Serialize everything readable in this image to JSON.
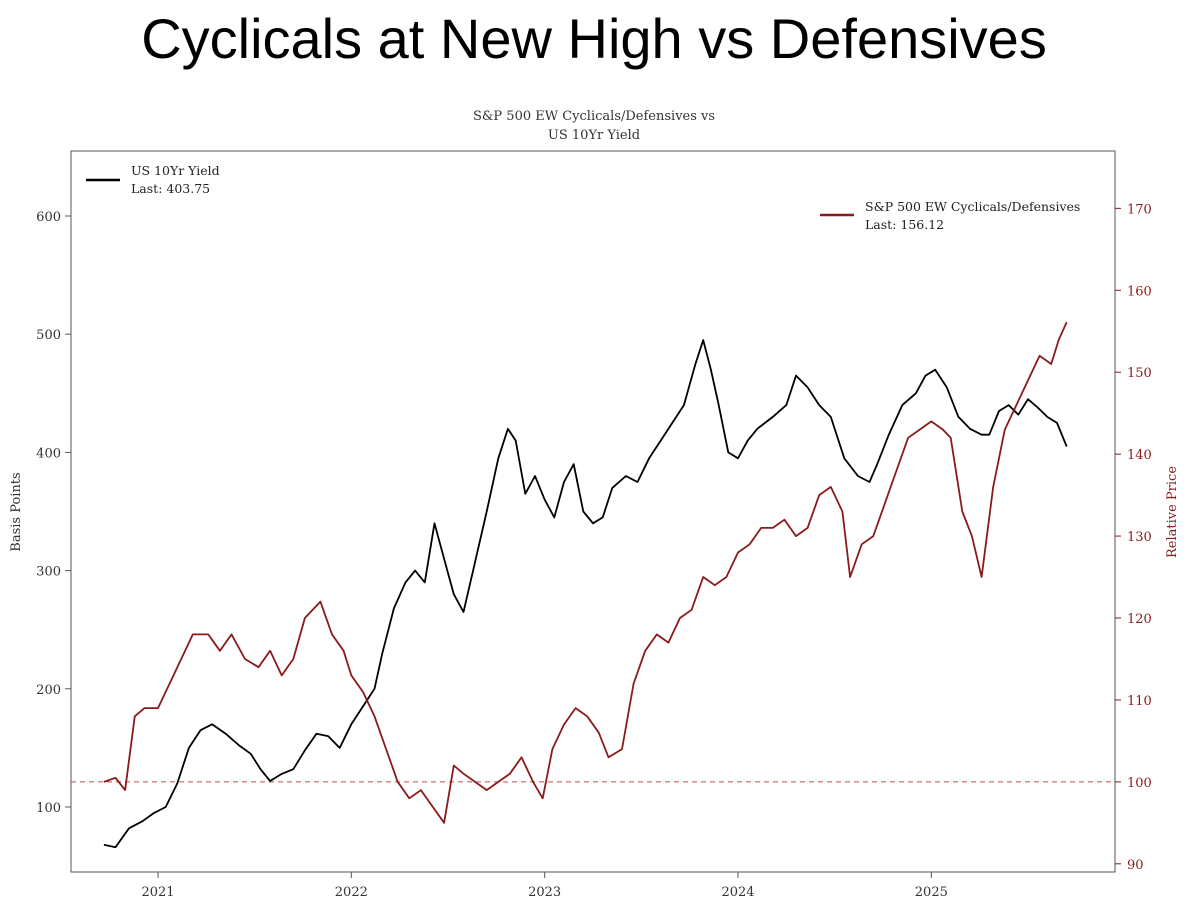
{
  "slide_title": "Cyclicals at New High vs Defensives",
  "chart_data": {
    "type": "line",
    "title": "S&P 500 EW Cyclicals/Defensives vs",
    "subtitle": "US 10Yr Yield",
    "xlabel": "",
    "ylabel": "Basis Points",
    "ylabel_right": "Relative Price",
    "x_ticks": [
      "2021",
      "2022",
      "2023",
      "2024",
      "2025"
    ],
    "x_range": [
      2020.55,
      2025.95
    ],
    "ylim": [
      45,
      655
    ],
    "ylim_right": [
      89,
      177
    ],
    "y_ticks": [
      100,
      200,
      300,
      400,
      500,
      600
    ],
    "y_ticks_right": [
      90,
      100,
      110,
      120,
      130,
      140,
      150,
      160,
      170
    ],
    "reference_line": {
      "axis": "right",
      "value": 100,
      "style": "dashed"
    },
    "series": [
      {
        "name": "US 10Yr Yield",
        "last_label": "Last: 403.75",
        "axis": "left",
        "color": "#000000",
        "points": [
          [
            2020.72,
            68
          ],
          [
            2020.78,
            66
          ],
          [
            2020.85,
            82
          ],
          [
            2020.92,
            88
          ],
          [
            2020.98,
            95
          ],
          [
            2021.04,
            100
          ],
          [
            2021.1,
            120
          ],
          [
            2021.16,
            150
          ],
          [
            2021.22,
            165
          ],
          [
            2021.28,
            170
          ],
          [
            2021.35,
            162
          ],
          [
            2021.42,
            152
          ],
          [
            2021.48,
            145
          ],
          [
            2021.53,
            132
          ],
          [
            2021.58,
            122
          ],
          [
            2021.64,
            128
          ],
          [
            2021.7,
            132
          ],
          [
            2021.76,
            148
          ],
          [
            2021.82,
            162
          ],
          [
            2021.88,
            160
          ],
          [
            2021.94,
            150
          ],
          [
            2022.0,
            170
          ],
          [
            2022.06,
            185
          ],
          [
            2022.12,
            200
          ],
          [
            2022.16,
            230
          ],
          [
            2022.22,
            268
          ],
          [
            2022.28,
            290
          ],
          [
            2022.33,
            300
          ],
          [
            2022.38,
            290
          ],
          [
            2022.43,
            340
          ],
          [
            2022.48,
            310
          ],
          [
            2022.53,
            280
          ],
          [
            2022.58,
            265
          ],
          [
            2022.63,
            300
          ],
          [
            2022.7,
            350
          ],
          [
            2022.76,
            395
          ],
          [
            2022.81,
            420
          ],
          [
            2022.85,
            410
          ],
          [
            2022.9,
            365
          ],
          [
            2022.95,
            380
          ],
          [
            2023.0,
            360
          ],
          [
            2023.05,
            345
          ],
          [
            2023.1,
            375
          ],
          [
            2023.15,
            390
          ],
          [
            2023.2,
            350
          ],
          [
            2023.25,
            340
          ],
          [
            2023.3,
            345
          ],
          [
            2023.35,
            370
          ],
          [
            2023.42,
            380
          ],
          [
            2023.48,
            375
          ],
          [
            2023.54,
            395
          ],
          [
            2023.6,
            410
          ],
          [
            2023.66,
            425
          ],
          [
            2023.72,
            440
          ],
          [
            2023.78,
            475
          ],
          [
            2023.82,
            495
          ],
          [
            2023.86,
            470
          ],
          [
            2023.9,
            440
          ],
          [
            2023.95,
            400
          ],
          [
            2024.0,
            395
          ],
          [
            2024.05,
            410
          ],
          [
            2024.1,
            420
          ],
          [
            2024.18,
            430
          ],
          [
            2024.25,
            440
          ],
          [
            2024.3,
            465
          ],
          [
            2024.36,
            455
          ],
          [
            2024.42,
            440
          ],
          [
            2024.48,
            430
          ],
          [
            2024.55,
            395
          ],
          [
            2024.62,
            380
          ],
          [
            2024.68,
            375
          ],
          [
            2024.72,
            390
          ],
          [
            2024.78,
            415
          ],
          [
            2024.85,
            440
          ],
          [
            2024.92,
            450
          ],
          [
            2024.97,
            465
          ],
          [
            2025.02,
            470
          ],
          [
            2025.08,
            455
          ],
          [
            2025.14,
            430
          ],
          [
            2025.2,
            420
          ],
          [
            2025.26,
            415
          ],
          [
            2025.3,
            415
          ],
          [
            2025.35,
            435
          ],
          [
            2025.4,
            440
          ],
          [
            2025.45,
            432
          ],
          [
            2025.5,
            445
          ],
          [
            2025.55,
            438
          ],
          [
            2025.6,
            430
          ],
          [
            2025.65,
            425
          ],
          [
            2025.7,
            405
          ]
        ]
      },
      {
        "name": "S&P 500 EW Cyclicals/Defensives",
        "last_label": "Last: 156.12",
        "axis": "right",
        "color": "#8b1a1a",
        "points": [
          [
            2020.72,
            100
          ],
          [
            2020.78,
            100.5
          ],
          [
            2020.83,
            99
          ],
          [
            2020.88,
            108
          ],
          [
            2020.93,
            109
          ],
          [
            2021.0,
            109
          ],
          [
            2021.06,
            112
          ],
          [
            2021.12,
            115
          ],
          [
            2021.18,
            118
          ],
          [
            2021.26,
            118
          ],
          [
            2021.32,
            116
          ],
          [
            2021.38,
            118
          ],
          [
            2021.45,
            115
          ],
          [
            2021.52,
            114
          ],
          [
            2021.58,
            116
          ],
          [
            2021.64,
            113
          ],
          [
            2021.7,
            115
          ],
          [
            2021.76,
            120
          ],
          [
            2021.84,
            122
          ],
          [
            2021.9,
            118
          ],
          [
            2021.96,
            116
          ],
          [
            2022.0,
            113
          ],
          [
            2022.06,
            111
          ],
          [
            2022.12,
            108
          ],
          [
            2022.18,
            104
          ],
          [
            2022.24,
            100
          ],
          [
            2022.3,
            98
          ],
          [
            2022.36,
            99
          ],
          [
            2022.42,
            97
          ],
          [
            2022.48,
            95
          ],
          [
            2022.53,
            102
          ],
          [
            2022.58,
            101
          ],
          [
            2022.64,
            100
          ],
          [
            2022.7,
            99
          ],
          [
            2022.76,
            100
          ],
          [
            2022.82,
            101
          ],
          [
            2022.88,
            103
          ],
          [
            2022.94,
            100
          ],
          [
            2022.99,
            98
          ],
          [
            2023.04,
            104
          ],
          [
            2023.1,
            107
          ],
          [
            2023.16,
            109
          ],
          [
            2023.22,
            108
          ],
          [
            2023.28,
            106
          ],
          [
            2023.33,
            103
          ],
          [
            2023.4,
            104
          ],
          [
            2023.46,
            112
          ],
          [
            2023.52,
            116
          ],
          [
            2023.58,
            118
          ],
          [
            2023.64,
            117
          ],
          [
            2023.7,
            120
          ],
          [
            2023.76,
            121
          ],
          [
            2023.82,
            125
          ],
          [
            2023.88,
            124
          ],
          [
            2023.94,
            125
          ],
          [
            2024.0,
            128
          ],
          [
            2024.06,
            129
          ],
          [
            2024.12,
            131
          ],
          [
            2024.18,
            131
          ],
          [
            2024.24,
            132
          ],
          [
            2024.3,
            130
          ],
          [
            2024.36,
            131
          ],
          [
            2024.42,
            135
          ],
          [
            2024.48,
            136
          ],
          [
            2024.54,
            133
          ],
          [
            2024.58,
            125
          ],
          [
            2024.64,
            129
          ],
          [
            2024.7,
            130
          ],
          [
            2024.76,
            134
          ],
          [
            2024.82,
            138
          ],
          [
            2024.88,
            142
          ],
          [
            2024.94,
            143
          ],
          [
            2025.0,
            144
          ],
          [
            2025.06,
            143
          ],
          [
            2025.1,
            142
          ],
          [
            2025.16,
            133
          ],
          [
            2025.21,
            130
          ],
          [
            2025.26,
            125
          ],
          [
            2025.32,
            136
          ],
          [
            2025.38,
            143
          ],
          [
            2025.44,
            146
          ],
          [
            2025.5,
            149
          ],
          [
            2025.56,
            152
          ],
          [
            2025.62,
            151
          ],
          [
            2025.66,
            154
          ],
          [
            2025.7,
            156.12
          ]
        ]
      }
    ]
  }
}
